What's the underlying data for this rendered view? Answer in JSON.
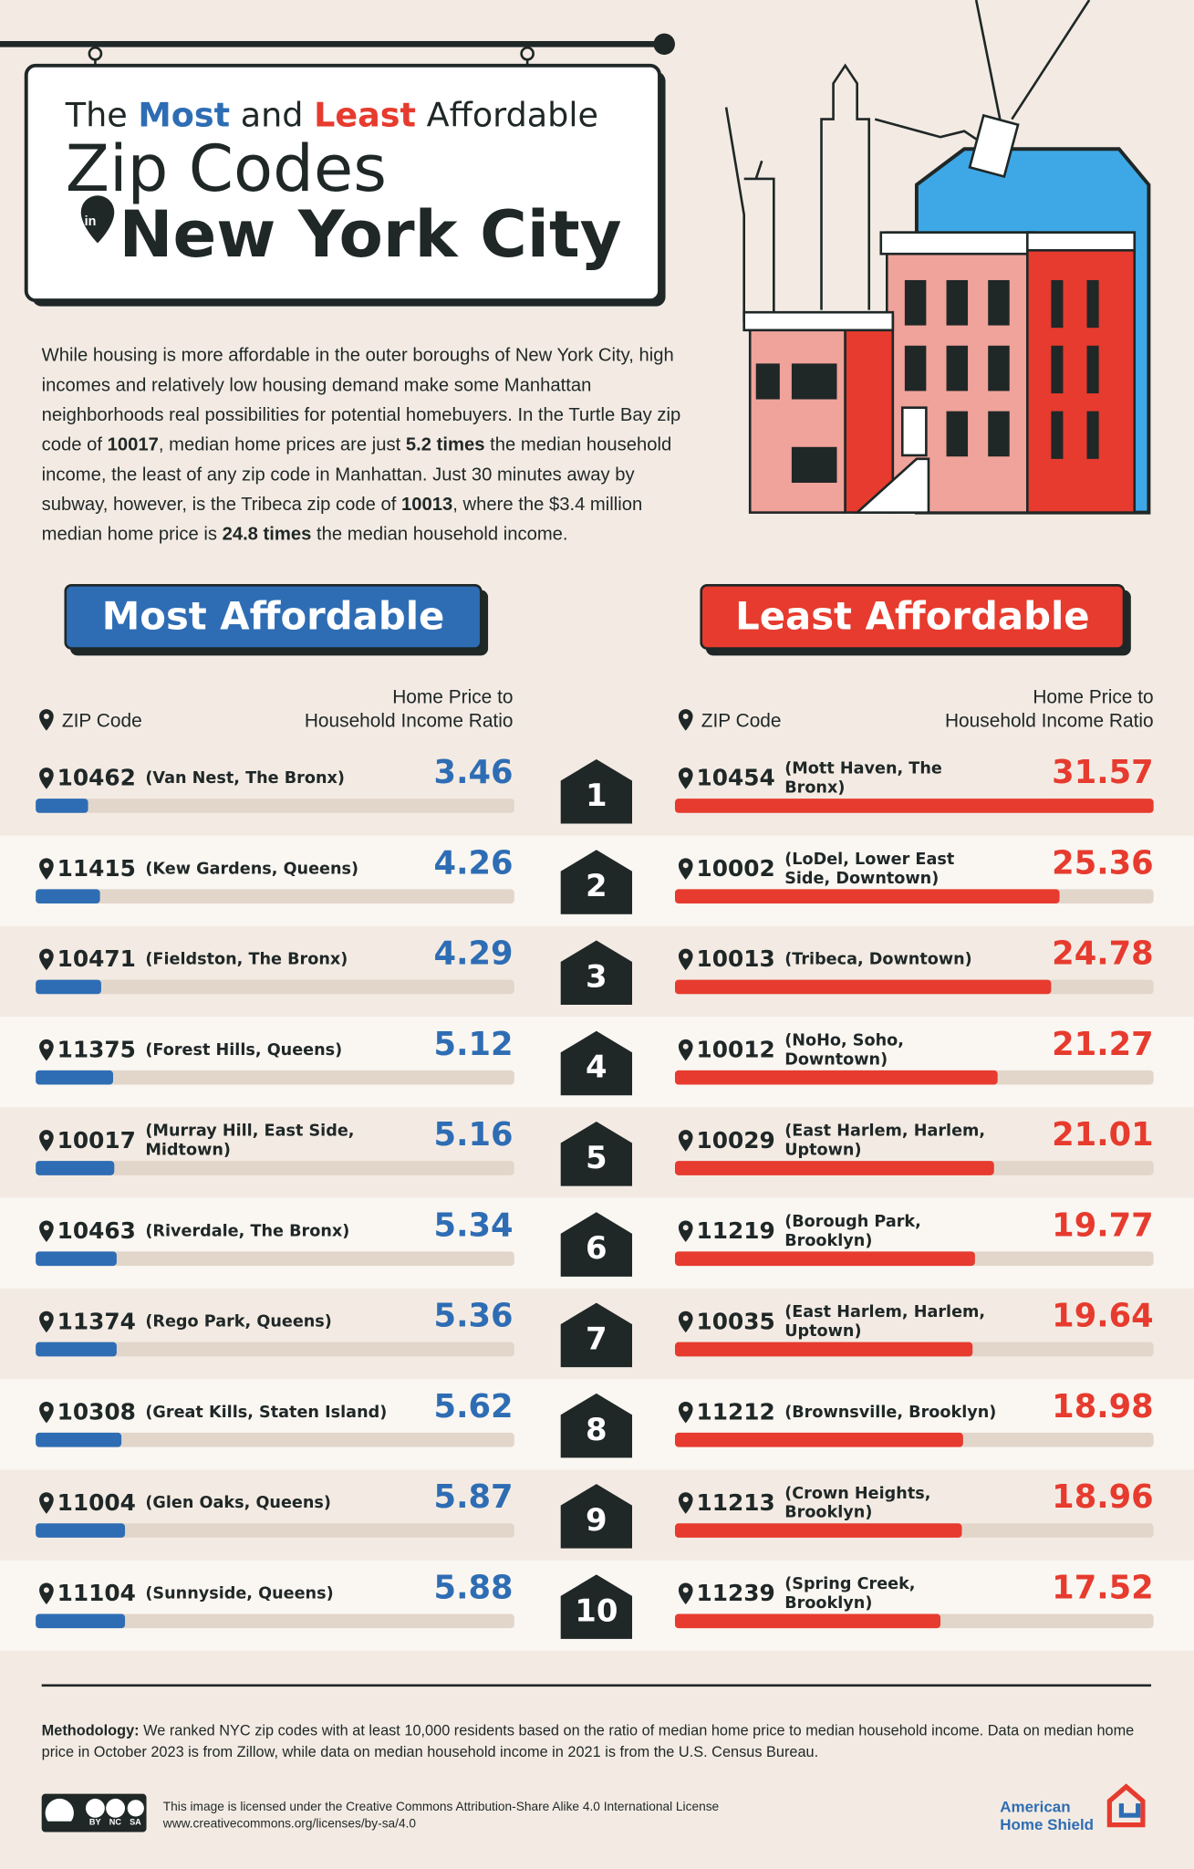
{
  "header": {
    "title_the": "The",
    "title_most": "Most",
    "title_and": "and",
    "title_least": "Least",
    "title_affordable": "Affordable",
    "title_line2": "Zip Codes",
    "title_in": "in",
    "title_line3": "New York City"
  },
  "intro": [
    {
      "text": "While housing is more affordable in the outer boroughs of New York City, high incomes and relatively low housing demand make some Manhattan neighborhoods real possibilities for potential homebuyers. In the Turtle Bay zip code of ",
      "bold": false
    },
    {
      "text": "10017",
      "bold": true
    },
    {
      "text": ", median home prices are just ",
      "bold": false
    },
    {
      "text": "5.2 times",
      "bold": true
    },
    {
      "text": " the median household income, the least of any zip code in Manhattan. Just 30 minutes away by subway, however, is the Tribeca zip code of ",
      "bold": false
    },
    {
      "text": "10013",
      "bold": true
    },
    {
      "text": ", where the $3.4 million median home price is ",
      "bold": false
    },
    {
      "text": "24.8 times",
      "bold": true
    },
    {
      "text": " the median household income.",
      "bold": false
    }
  ],
  "most": {
    "heading": "Most Affordable",
    "color": "#2e6db4",
    "col_zip": "ZIP Code",
    "col_ratio": [
      "Home Price to",
      "Household Income Ratio"
    ],
    "rows": [
      {
        "zip": "10462",
        "area": "(Van Nest, The Bronx)",
        "ratio": 3.46
      },
      {
        "zip": "11415",
        "area": "(Kew Gardens, Queens)",
        "ratio": 4.26
      },
      {
        "zip": "10471",
        "area": "(Fieldston, The Bronx)",
        "ratio": 4.29
      },
      {
        "zip": "11375",
        "area": "(Forest Hills, Queens)",
        "ratio": 5.12
      },
      {
        "zip": "10017",
        "area": "(Murray Hill, East Side, Midtown)",
        "ratio": 5.16
      },
      {
        "zip": "10463",
        "area": "(Riverdale, The Bronx)",
        "ratio": 5.34
      },
      {
        "zip": "11374",
        "area": "(Rego Park, Queens)",
        "ratio": 5.36
      },
      {
        "zip": "10308",
        "area": "(Great Kills, Staten Island)",
        "ratio": 5.62
      },
      {
        "zip": "11004",
        "area": "(Glen Oaks, Queens)",
        "ratio": 5.87
      },
      {
        "zip": "11104",
        "area": "(Sunnyside, Queens)",
        "ratio": 5.88
      }
    ]
  },
  "least": {
    "heading": "Least Affordable",
    "color": "#e63b2e",
    "col_zip": "ZIP Code",
    "col_ratio": [
      "Home Price to",
      "Household Income Ratio"
    ],
    "rows": [
      {
        "zip": "10454",
        "area": "(Mott Haven, The Bronx)",
        "ratio": 31.57
      },
      {
        "zip": "10002",
        "area": "(LoDel, Lower East Side, Downtown)",
        "ratio": 25.36
      },
      {
        "zip": "10013",
        "area": "(Tribeca, Downtown)",
        "ratio": 24.78
      },
      {
        "zip": "10012",
        "area": "(NoHo, Soho, Downtown)",
        "ratio": 21.27
      },
      {
        "zip": "10029",
        "area": "(East Harlem, Harlem, Uptown)",
        "ratio": 21.01
      },
      {
        "zip": "11219",
        "area": "(Borough Park, Brooklyn)",
        "ratio": 19.77
      },
      {
        "zip": "10035",
        "area": "(East Harlem, Harlem, Uptown)",
        "ratio": 19.64
      },
      {
        "zip": "11212",
        "area": "(Brownsville, Brooklyn)",
        "ratio": 18.98
      },
      {
        "zip": "11213",
        "area": "(Crown Heights, Brooklyn)",
        "ratio": 18.96
      },
      {
        "zip": "11239",
        "area": "(Spring Creek, Brooklyn)",
        "ratio": 17.52
      }
    ]
  },
  "ranks": [
    1,
    2,
    3,
    4,
    5,
    6,
    7,
    8,
    9,
    10
  ],
  "methodology": {
    "label": "Methodology:",
    "text": " We ranked NYC zip codes with at least 10,000 residents based on the ratio of median home price to median household income. Data on median home price in October 2023 is from Zillow, while data on median household income in 2021 is from the U.S. Census Bureau."
  },
  "license": {
    "badge": [
      "BY",
      "NC",
      "SA"
    ],
    "line1": "This image is licensed under the Creative Commons Attribution-Share Alike 4.0 International License",
    "line2": "www.creativecommons.org/licenses/by-sa/4.0"
  },
  "logo": [
    "American",
    "Home Shield"
  ]
}
